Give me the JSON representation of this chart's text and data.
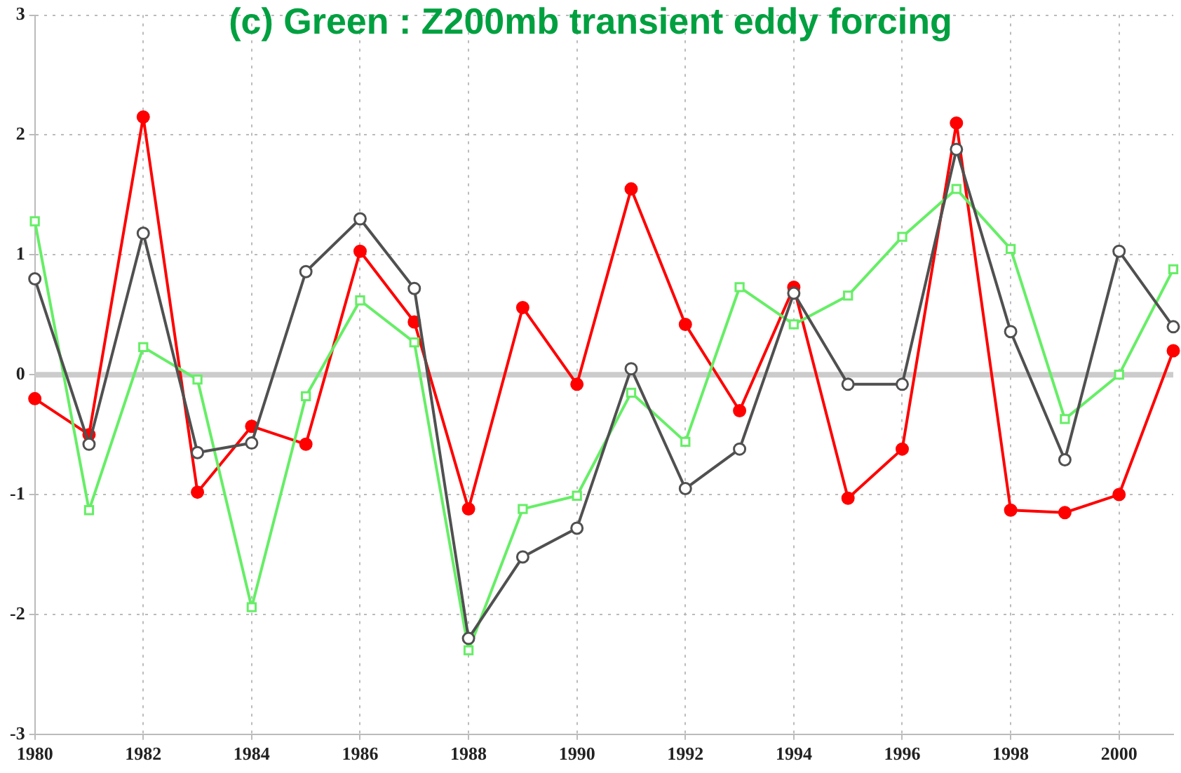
{
  "chart_data": {
    "type": "line",
    "title": "(c) Green : Z200mb transient eddy forcing",
    "x": [
      1980,
      1981,
      1982,
      1983,
      1984,
      1985,
      1986,
      1987,
      1988,
      1989,
      1990,
      1991,
      1992,
      1993,
      1994,
      1995,
      1996,
      1997,
      1998,
      1999,
      2000,
      2001
    ],
    "series": [
      {
        "color": "#ff0000",
        "marker": "circle",
        "values": [
          -0.2,
          -0.5,
          2.15,
          -0.98,
          -0.43,
          -0.58,
          1.03,
          0.44,
          -1.12,
          0.56,
          -0.08,
          1.55,
          0.42,
          -0.3,
          0.73,
          -1.03,
          -0.62,
          2.1,
          -1.13,
          -1.15,
          -1.0,
          0.2
        ]
      },
      {
        "color": "#505050",
        "marker": "circle",
        "values": [
          0.8,
          -0.58,
          1.18,
          -0.65,
          -0.57,
          0.86,
          1.3,
          0.72,
          -2.2,
          -1.52,
          -1.28,
          0.05,
          -0.95,
          -0.62,
          0.68,
          -0.08,
          -0.08,
          1.88,
          0.36,
          -0.71,
          1.03,
          0.4
        ]
      },
      {
        "color": "#66ee66",
        "marker": "square",
        "values": [
          1.28,
          -1.13,
          0.23,
          -0.04,
          -1.94,
          -0.18,
          0.62,
          0.27,
          -2.3,
          -1.12,
          -1.01,
          -0.15,
          -0.56,
          0.73,
          0.42,
          0.66,
          1.15,
          1.55,
          1.05,
          -0.37,
          0.0,
          0.88
        ]
      }
    ],
    "xlim": [
      1980,
      2001
    ],
    "xticks": [
      1980,
      1982,
      1984,
      1986,
      1988,
      1990,
      1992,
      1994,
      1996,
      1998,
      2000
    ],
    "ylim": [
      -3,
      3
    ],
    "yticks": [
      -3,
      -2,
      -1,
      0,
      1,
      2,
      3
    ],
    "ref_lines": [
      {
        "axis": "y",
        "value": 0,
        "color": "#cccccc"
      }
    ],
    "grid": true,
    "legend": false,
    "line_style": "solid"
  }
}
